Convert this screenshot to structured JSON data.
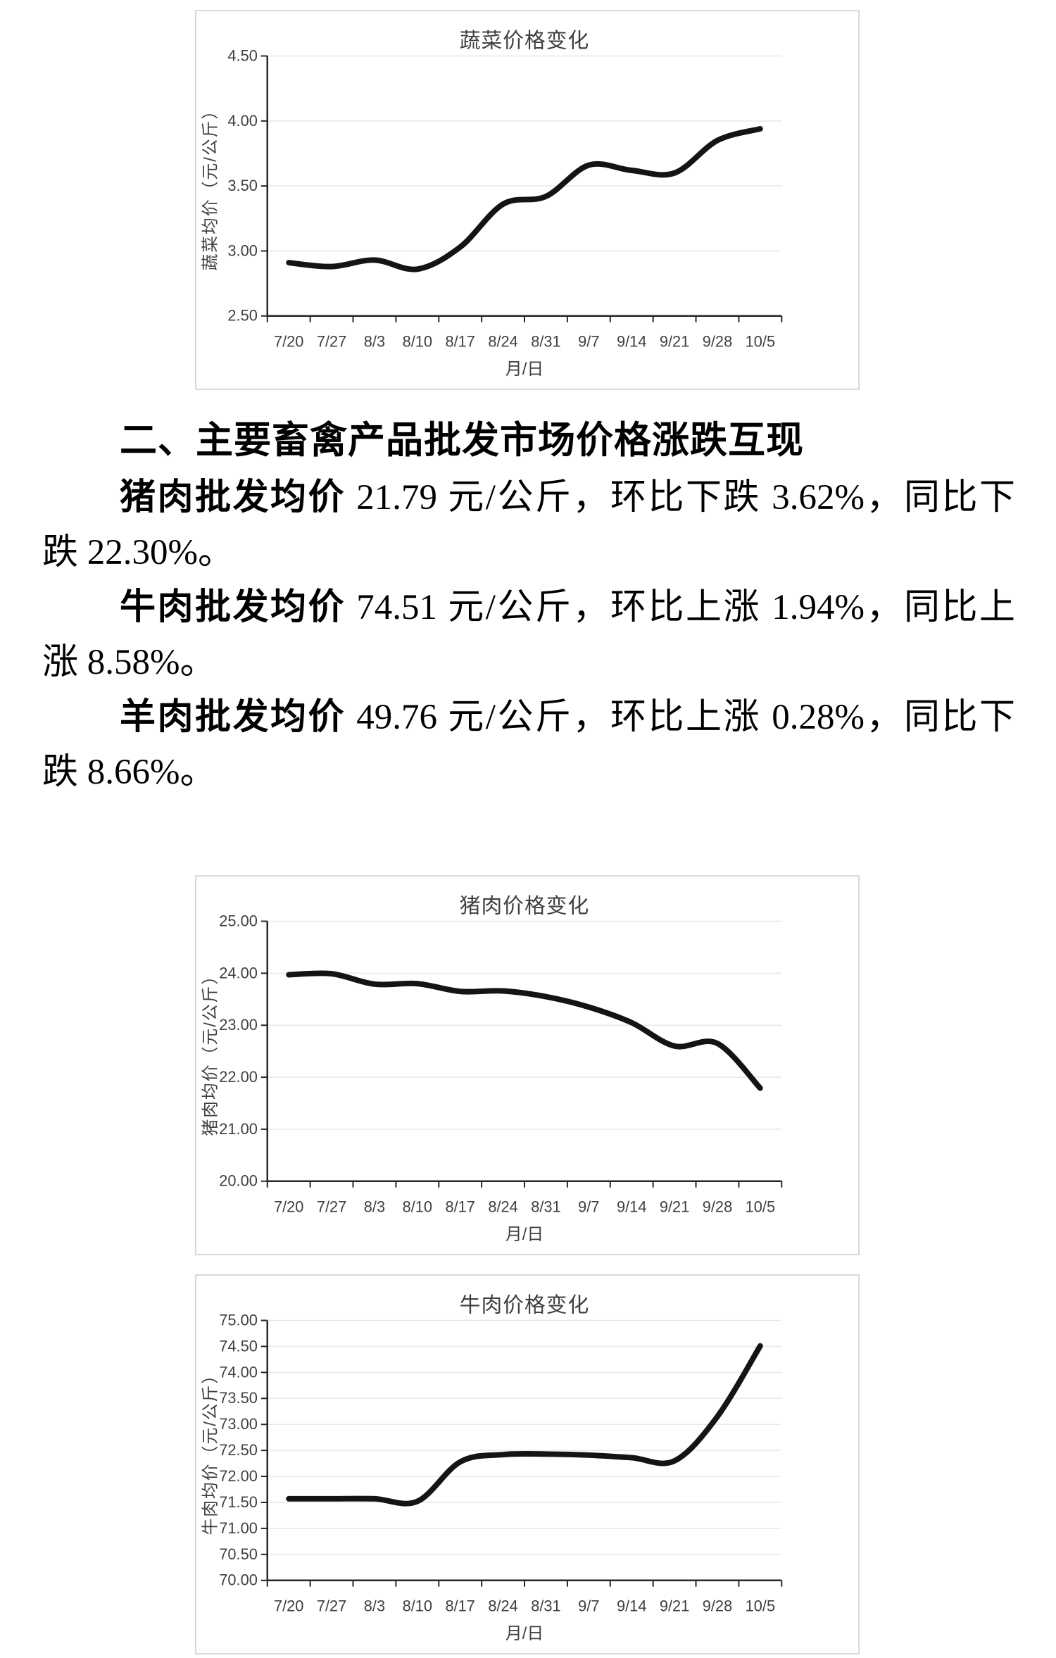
{
  "section_heading": "二、主要畜禽产品批发市场价格涨跌互现",
  "paragraphs": [
    {
      "lead": "猪肉批发均价",
      "line1_rest": " 21.79 元/公斤，环比下跌 3.62%，同比下",
      "line2": "跌 22.30%。"
    },
    {
      "lead": "牛肉批发均价",
      "line1_rest": " 74.51 元/公斤，环比上涨 1.94%，同比上",
      "line2": "涨 8.58%。"
    },
    {
      "lead": "羊肉批发均价",
      "line1_rest": " 49.76 元/公斤，环比上涨 0.28%，同比下",
      "line2": "跌 8.66%。"
    }
  ],
  "colors": {
    "line": "#141414",
    "axis": "#262626",
    "grid": "#e8e8e8",
    "chart_text": "#404040",
    "box_border": "#d9d9d9"
  },
  "chart_data": [
    {
      "name": "vegetable",
      "type": "line",
      "title": "蔬菜价格变化",
      "xlabel": "月/日",
      "ylabel": "蔬菜均价（元/公斤）",
      "categories": [
        "7/20",
        "7/27",
        "8/3",
        "8/10",
        "8/17",
        "8/24",
        "8/31",
        "9/7",
        "9/14",
        "9/21",
        "9/28",
        "10/5"
      ],
      "values": [
        2.91,
        2.88,
        2.93,
        2.86,
        3.03,
        3.36,
        3.42,
        3.66,
        3.62,
        3.6,
        3.85,
        3.94
      ],
      "ylim": [
        2.5,
        4.5
      ],
      "ytick_step": 0.5,
      "y_decimals": 2,
      "grid": true,
      "legend": "none"
    },
    {
      "name": "pork",
      "type": "line",
      "title": "猪肉价格变化",
      "xlabel": "月/日",
      "ylabel": "猪肉均价（元/公斤）",
      "categories": [
        "7/20",
        "7/27",
        "8/3",
        "8/10",
        "8/17",
        "8/24",
        "8/31",
        "9/7",
        "9/14",
        "9/21",
        "9/28",
        "10/5"
      ],
      "values": [
        23.97,
        23.99,
        23.79,
        23.8,
        23.65,
        23.66,
        23.55,
        23.35,
        23.05,
        22.6,
        22.65,
        21.79
      ],
      "ylim": [
        20.0,
        25.0
      ],
      "ytick_step": 1.0,
      "y_decimals": 2,
      "grid": true,
      "legend": "none"
    },
    {
      "name": "beef",
      "type": "line",
      "title": "牛肉价格变化",
      "xlabel": "月/日",
      "ylabel": "牛肉均价（元/公斤）",
      "categories": [
        "7/20",
        "7/27",
        "8/3",
        "8/10",
        "8/17",
        "8/24",
        "8/31",
        "9/7",
        "9/14",
        "9/21",
        "9/28",
        "10/5"
      ],
      "values": [
        71.57,
        71.57,
        71.57,
        71.52,
        72.28,
        72.42,
        72.43,
        72.41,
        72.36,
        72.3,
        73.15,
        74.51
      ],
      "ylim": [
        70.0,
        75.0
      ],
      "ytick_step": 0.5,
      "y_decimals": 2,
      "grid": true,
      "legend": "none"
    }
  ]
}
